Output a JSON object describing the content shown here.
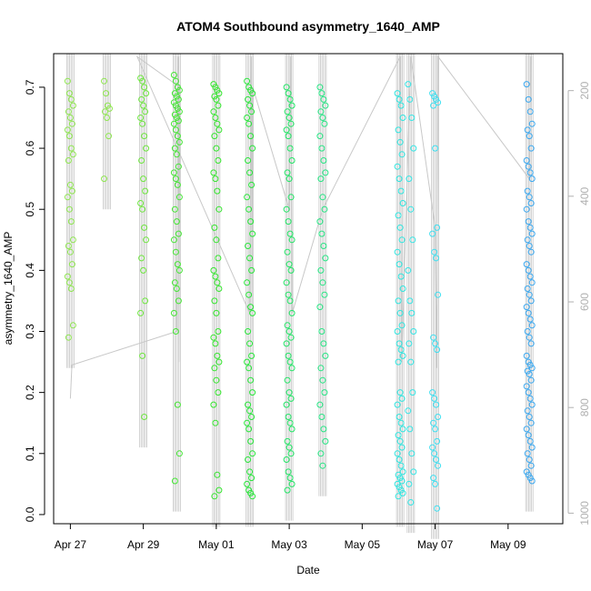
{
  "chart_data": {
    "type": "scatter",
    "title": "ATOM4 Southbound asymmetry_1640_AMP",
    "xlabel": "Date",
    "ylabel": "asymmetry_1640_AMP",
    "xlim": [
      "2023-04-26T13:00",
      "2023-05-10T12:00"
    ],
    "ylim": [
      -0.015,
      0.755
    ],
    "y_ticks": [
      "0.0",
      "0.1",
      "0.2",
      "0.3",
      "0.4",
      "0.5",
      "0.6",
      "0.7"
    ],
    "x_ticks": [
      {
        "date": "2023-04-27",
        "label": "Apr 27"
      },
      {
        "date": "2023-04-29",
        "label": "Apr 29"
      },
      {
        "date": "2023-05-01",
        "label": "May 01"
      },
      {
        "date": "2023-05-03",
        "label": "May 03"
      },
      {
        "date": "2023-05-05",
        "label": "May 05"
      },
      {
        "date": "2023-05-07",
        "label": "May 07"
      },
      {
        "date": "2023-05-09",
        "label": "May 09"
      }
    ],
    "right_axis": {
      "lim": [
        1020,
        130
      ],
      "ticks": [
        "200",
        "400",
        "600",
        "800",
        "1000"
      ],
      "color": "#b0b0b0",
      "trace_color": "#c8c8c8"
    },
    "marker": "open-circle",
    "grid": false,
    "bursts": [
      {
        "time": "2023-04-27T00:00",
        "color": "#8fe650",
        "values": [
          0.71,
          0.69,
          0.68,
          0.67,
          0.66,
          0.65,
          0.64,
          0.63,
          0.62,
          0.6,
          0.59,
          0.58,
          0.54,
          0.53,
          0.52,
          0.5,
          0.48,
          0.45,
          0.44,
          0.43,
          0.41,
          0.39,
          0.38,
          0.37,
          0.31,
          0.29
        ]
      },
      {
        "time": "2023-04-28T00:00",
        "color": "#8fe650",
        "values": [
          0.71,
          0.69,
          0.67,
          0.665,
          0.66,
          0.65,
          0.62,
          0.55
        ]
      },
      {
        "time": "2023-04-29T00:00",
        "color": "#6fe640",
        "values": [
          0.715,
          0.71,
          0.7,
          0.69,
          0.68,
          0.67,
          0.66,
          0.65,
          0.64,
          0.62,
          0.6,
          0.58,
          0.55,
          0.53,
          0.51,
          0.5,
          0.47,
          0.45,
          0.42,
          0.4,
          0.35,
          0.33,
          0.26,
          0.16
        ]
      },
      {
        "time": "2023-04-29T22:00",
        "color": "#45e635",
        "values": [
          0.72,
          0.71,
          0.7,
          0.695,
          0.69,
          0.685,
          0.68,
          0.675,
          0.67,
          0.665,
          0.66,
          0.655,
          0.65,
          0.645,
          0.64,
          0.63,
          0.62,
          0.61,
          0.6,
          0.59,
          0.57,
          0.56,
          0.55,
          0.54,
          0.52,
          0.5,
          0.48,
          0.46,
          0.45,
          0.43,
          0.41,
          0.4,
          0.38,
          0.37,
          0.35,
          0.33,
          0.3,
          0.18,
          0.1,
          0.055
        ]
      },
      {
        "time": "2023-05-01T00:00",
        "color": "#36e62f",
        "values": [
          0.705,
          0.7,
          0.695,
          0.69,
          0.685,
          0.68,
          0.67,
          0.66,
          0.65,
          0.64,
          0.63,
          0.62,
          0.6,
          0.58,
          0.56,
          0.55,
          0.53,
          0.5,
          0.47,
          0.45,
          0.42,
          0.4,
          0.39,
          0.38,
          0.37,
          0.35,
          0.33,
          0.3,
          0.29,
          0.28,
          0.26,
          0.25,
          0.24,
          0.22,
          0.2,
          0.18,
          0.15,
          0.065,
          0.04,
          0.03
        ]
      },
      {
        "time": "2023-05-01T22:00",
        "color": "#28e63a",
        "values": [
          0.71,
          0.7,
          0.695,
          0.69,
          0.68,
          0.67,
          0.66,
          0.65,
          0.64,
          0.62,
          0.6,
          0.58,
          0.56,
          0.54,
          0.52,
          0.5,
          0.48,
          0.46,
          0.44,
          0.42,
          0.4,
          0.38,
          0.36,
          0.34,
          0.33,
          0.3,
          0.28,
          0.26,
          0.25,
          0.24,
          0.22,
          0.2,
          0.18,
          0.17,
          0.16,
          0.15,
          0.14,
          0.12,
          0.1,
          0.09,
          0.07,
          0.06,
          0.05,
          0.04,
          0.035,
          0.03
        ]
      },
      {
        "time": "2023-05-03T00:00",
        "color": "#22e666",
        "values": [
          0.7,
          0.69,
          0.68,
          0.67,
          0.66,
          0.65,
          0.64,
          0.63,
          0.62,
          0.6,
          0.58,
          0.56,
          0.55,
          0.52,
          0.5,
          0.48,
          0.46,
          0.45,
          0.43,
          0.41,
          0.4,
          0.38,
          0.36,
          0.35,
          0.33,
          0.31,
          0.3,
          0.29,
          0.28,
          0.26,
          0.25,
          0.24,
          0.22,
          0.2,
          0.19,
          0.18,
          0.16,
          0.15,
          0.14,
          0.12,
          0.11,
          0.1,
          0.09,
          0.07,
          0.06,
          0.05,
          0.04
        ]
      },
      {
        "time": "2023-05-03T22:00",
        "color": "#28e685",
        "values": [
          0.7,
          0.69,
          0.68,
          0.67,
          0.66,
          0.65,
          0.64,
          0.62,
          0.6,
          0.58,
          0.56,
          0.55,
          0.52,
          0.5,
          0.48,
          0.46,
          0.44,
          0.42,
          0.4,
          0.38,
          0.36,
          0.34,
          0.3,
          0.28,
          0.26,
          0.24,
          0.22,
          0.2,
          0.18,
          0.16,
          0.14,
          0.12,
          0.1,
          0.08
        ]
      },
      {
        "time": "2023-05-06T01:00",
        "color": "#2fe6e0",
        "values": [
          0.69,
          0.68,
          0.67,
          0.65,
          0.63,
          0.61,
          0.59,
          0.57,
          0.55,
          0.53,
          0.51,
          0.49,
          0.47,
          0.45,
          0.43,
          0.41,
          0.39,
          0.37,
          0.35,
          0.33,
          0.31,
          0.3,
          0.28,
          0.27,
          0.26,
          0.25,
          0.2,
          0.19,
          0.18,
          0.16,
          0.15,
          0.14,
          0.13,
          0.12,
          0.11,
          0.1,
          0.09,
          0.08,
          0.07,
          0.065,
          0.06,
          0.055,
          0.05,
          0.045,
          0.04,
          0.035,
          0.03
        ]
      },
      {
        "time": "2023-05-06T08:00",
        "color": "#36e6e6",
        "values": [
          0.705,
          0.68,
          0.65,
          0.6,
          0.55,
          0.5,
          0.45,
          0.4,
          0.35,
          0.33,
          0.3,
          0.28,
          0.25,
          0.2,
          0.17,
          0.14,
          0.1,
          0.07,
          0.05,
          0.02
        ]
      },
      {
        "time": "2023-05-07T00:00",
        "color": "#3fdff0",
        "values": [
          0.69,
          0.685,
          0.68,
          0.675,
          0.67,
          0.6,
          0.47,
          0.46,
          0.43,
          0.42,
          0.36,
          0.29,
          0.28,
          0.27,
          0.2,
          0.19,
          0.18,
          0.16,
          0.15,
          0.14,
          0.12,
          0.11,
          0.1,
          0.09,
          0.08,
          0.06,
          0.05,
          0.01
        ]
      },
      {
        "time": "2023-05-09T14:00",
        "color": "#3aa8f0",
        "values": [
          0.705,
          0.68,
          0.66,
          0.64,
          0.63,
          0.62,
          0.6,
          0.58,
          0.57,
          0.56,
          0.55,
          0.53,
          0.52,
          0.51,
          0.5,
          0.48,
          0.47,
          0.46,
          0.45,
          0.44,
          0.43,
          0.41,
          0.4,
          0.39,
          0.38,
          0.37,
          0.36,
          0.35,
          0.34,
          0.33,
          0.32,
          0.31,
          0.3,
          0.29,
          0.28,
          0.26,
          0.25,
          0.245,
          0.24,
          0.235,
          0.23,
          0.22,
          0.21,
          0.2,
          0.19,
          0.18,
          0.17,
          0.16,
          0.15,
          0.14,
          0.13,
          0.12,
          0.11,
          0.1,
          0.09,
          0.08,
          0.07,
          0.065,
          0.06,
          0.055
        ]
      }
    ],
    "trace": [
      [
        "2023-04-27T00:00",
        0.19
      ],
      [
        "2023-04-27T01:00",
        0.245
      ],
      [
        "2023-04-29T22:00",
        0.3
      ],
      [
        "2023-04-29T23:00",
        0.75
      ],
      [
        "2023-04-29T23:30",
        0.25
      ],
      [
        "2023-04-30T00:00",
        0.7
      ],
      [
        "2023-04-28T20:00",
        0.75
      ],
      [
        "2023-05-01T22:00",
        0.33
      ],
      [
        "2023-05-01T23:00",
        0.75
      ],
      [
        "2023-05-01T23:30",
        0.3
      ],
      [
        "2023-05-02T00:00",
        0.7
      ],
      [
        "2023-05-03T00:00",
        0.5
      ],
      [
        "2023-05-03T01:00",
        0.75
      ],
      [
        "2023-05-03T02:00",
        0.33
      ],
      [
        "2023-05-03T22:00",
        0.5
      ],
      [
        "2023-05-06T01:00",
        0.75
      ],
      [
        "2023-05-06T02:00",
        0.25
      ],
      [
        "2023-05-06T08:00",
        0.75
      ],
      [
        "2023-05-07T00:00",
        0.47
      ],
      [
        "2023-05-07T01:00",
        0.24
      ],
      [
        "2023-05-07T02:00",
        0.75
      ],
      [
        "2023-05-09T14:00",
        0.55
      ],
      [
        "2023-05-09T15:00",
        0.75
      ]
    ]
  }
}
